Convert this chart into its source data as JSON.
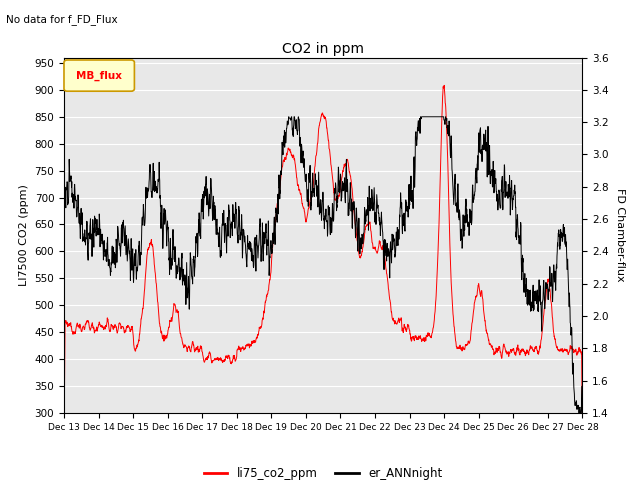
{
  "title": "CO2 in ppm",
  "subtitle": "No data for f_FD_Flux",
  "ylabel_left": "LI7500 CO2 (ppm)",
  "ylabel_right": "FD Chamber-flux",
  "ylim_left": [
    300,
    960
  ],
  "ylim_right": [
    1.4,
    3.6
  ],
  "yticks_left": [
    300,
    350,
    400,
    450,
    500,
    550,
    600,
    650,
    700,
    750,
    800,
    850,
    900,
    950
  ],
  "yticks_right": [
    1.4,
    1.6,
    1.8,
    2.0,
    2.2,
    2.4,
    2.6,
    2.8,
    3.0,
    3.2,
    3.4,
    3.6
  ],
  "xticklabels": [
    "Dec 13",
    "Dec 14",
    "Dec 15",
    "Dec 16",
    "Dec 17",
    "Dec 18",
    "Dec 19",
    "Dec 20",
    "Dec 21",
    "Dec 22",
    "Dec 23",
    "Dec 24",
    "Dec 25",
    "Dec 26",
    "Dec 27",
    "Dec 28"
  ],
  "legend_label_red": "li75_co2_ppm",
  "legend_label_black": "er_ANNnight",
  "legend_box_label": "MB_flux",
  "background_color": "#e8e8e8",
  "line_color_red": "#ff0000",
  "line_color_black": "#000000",
  "grid_color": "#ffffff",
  "n_points": 2000
}
